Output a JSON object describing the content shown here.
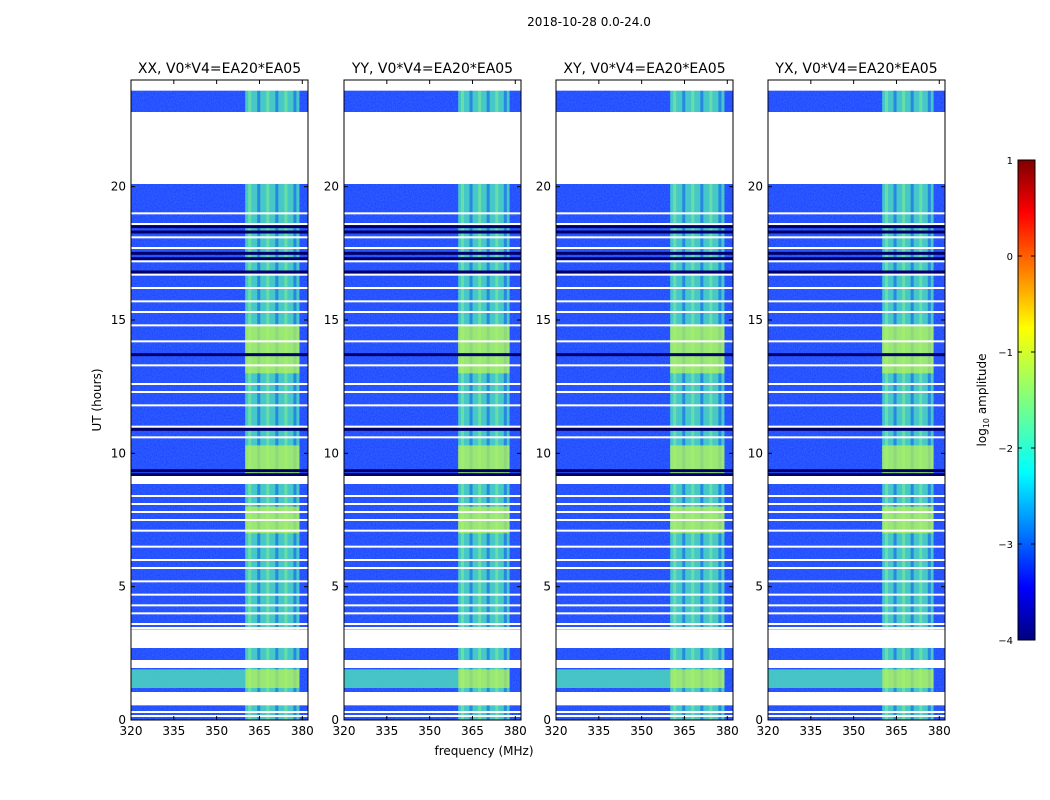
{
  "figure_title": "2018-10-28 0.0-24.0",
  "chart_data": {
    "type": "heatmap",
    "suptitle": "2018-10-28 0.0-24.0",
    "xlabel": "frequency (MHz)",
    "ylabel": "UT (hours)",
    "xlim": [
      320,
      382
    ],
    "ylim": [
      0,
      24
    ],
    "x_ticks": [
      320,
      335,
      350,
      365,
      380
    ],
    "y_ticks": [
      0,
      5,
      10,
      15,
      20
    ],
    "panels": [
      {
        "title": "XX, V0*V4=EA20*EA05",
        "band_mhz": [
          360,
          379
        ]
      },
      {
        "title": "YY, V0*V4=EA20*EA05",
        "band_mhz": [
          360,
          378
        ]
      },
      {
        "title": "XY, V0*V4=EA20*EA05",
        "band_mhz": [
          360,
          379
        ]
      },
      {
        "title": "YX, V0*V4=EA20*EA05",
        "band_mhz": [
          360,
          378
        ]
      }
    ],
    "data_gaps_hours": [
      [
        0.55,
        1.05
      ],
      [
        1.95,
        2.25
      ],
      [
        2.7,
        3.4
      ],
      [
        8.85,
        9.15
      ],
      [
        20.1,
        22.8
      ]
    ],
    "bright_band_hours": [
      [
        1.2,
        1.9
      ],
      [
        13.0,
        14.8
      ],
      [
        9.2,
        10.3
      ],
      [
        7.0,
        8.0
      ]
    ],
    "white_lines_hours": [
      0.15,
      0.3,
      3.45,
      3.6,
      4.0,
      4.3,
      4.7,
      5.2,
      5.7,
      6.0,
      6.5,
      7.1,
      7.5,
      7.8,
      8.1,
      8.4,
      10.6,
      11.0,
      11.8,
      12.3,
      12.6,
      13.3,
      14.2,
      14.8,
      15.3,
      15.7,
      16.2,
      16.7,
      17.2,
      17.7,
      18.1,
      18.6,
      19.0
    ],
    "dark_lines_hours": [
      2.9,
      3.1,
      9.2,
      9.35,
      10.9,
      13.7,
      16.8,
      17.3,
      17.5,
      18.3,
      18.5
    ],
    "colorbar": {
      "label": "log10 amplitude",
      "min": -4,
      "max": 1,
      "ticks": [
        -4,
        -3,
        -2,
        -1,
        0,
        1
      ],
      "tick_labels": [
        "−4",
        "−3",
        "−2",
        "−1",
        "0",
        "1"
      ],
      "colormap": "jet"
    }
  }
}
